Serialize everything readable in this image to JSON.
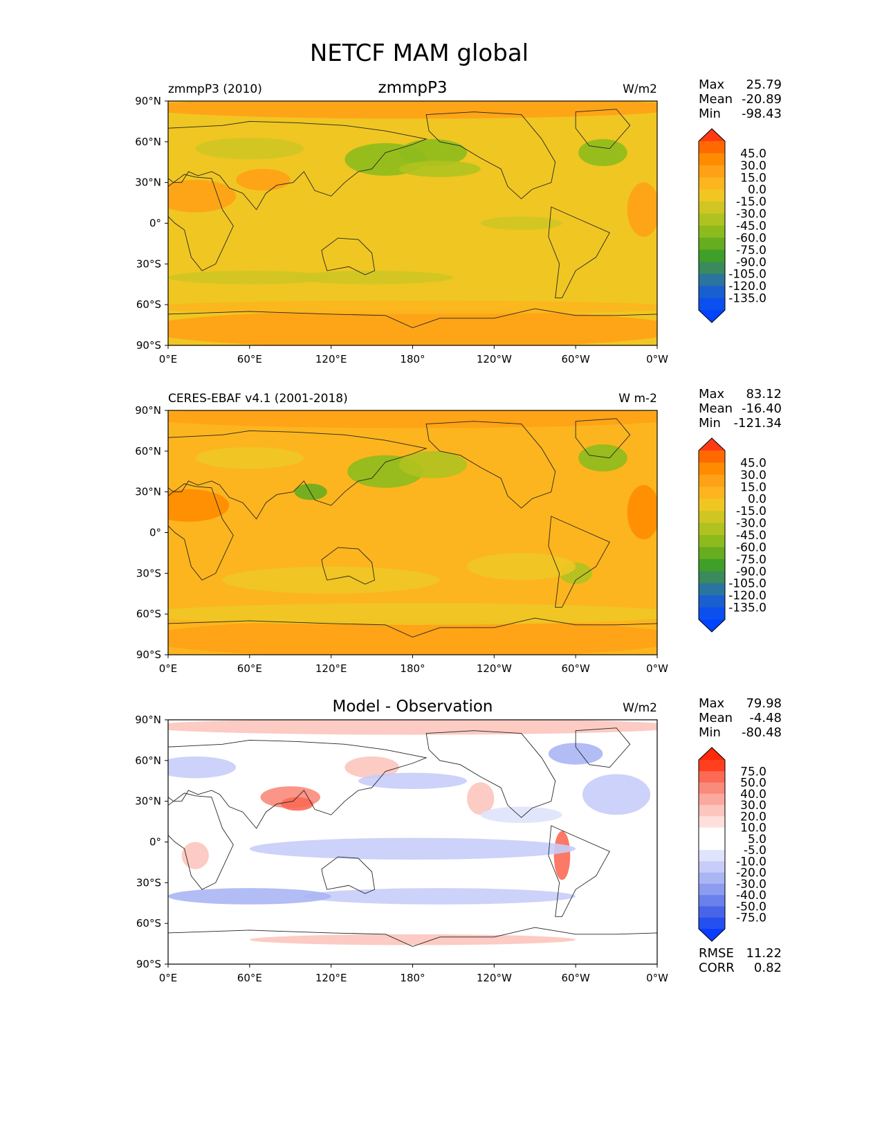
{
  "figure_title": "NETCF MAM global",
  "x_ticks": [
    "0°E",
    "60°E",
    "120°E",
    "180°",
    "120°W",
    "60°W",
    "0°W"
  ],
  "y_ticks": [
    "90°N",
    "60°N",
    "30°N",
    "0°",
    "30°S",
    "60°S",
    "90°S"
  ],
  "panels": [
    {
      "id": "model",
      "left_label": "zmmpP3 (2010)",
      "center_label": "zmmpP3",
      "units": "W/m2",
      "stats": [
        {
          "label": "Max",
          "value": "25.79"
        },
        {
          "label": "Mean",
          "value": "-20.89"
        },
        {
          "label": "Min",
          "value": "-98.43"
        }
      ],
      "colorbar": {
        "labels": [
          "45.0",
          "30.0",
          "15.0",
          "0.0",
          "-15.0",
          "-30.0",
          "-45.0",
          "-60.0",
          "-75.0",
          "-90.0",
          "-105.0",
          "-120.0",
          "-135.0"
        ],
        "colors": [
          "#ff3b14",
          "#ff6a00",
          "#ff8c00",
          "#ffa116",
          "#fcb51e",
          "#f0c623",
          "#cfc523",
          "#b0c21f",
          "#8dbb1d",
          "#66ad1f",
          "#3f9f28",
          "#3a8a5d",
          "#2a74a0",
          "#1a5fd0",
          "#0b50ee",
          "#0044ff"
        ]
      }
    },
    {
      "id": "obs",
      "left_label": "CERES-EBAF v4.1 (2001-2018)",
      "center_label": "",
      "units": "W m-2",
      "stats": [
        {
          "label": "Max",
          "value": "83.12"
        },
        {
          "label": "Mean",
          "value": "-16.40"
        },
        {
          "label": "Min",
          "value": "-121.34"
        }
      ],
      "colorbar": {
        "labels": [
          "45.0",
          "30.0",
          "15.0",
          "0.0",
          "-15.0",
          "-30.0",
          "-45.0",
          "-60.0",
          "-75.0",
          "-90.0",
          "-105.0",
          "-120.0",
          "-135.0"
        ],
        "colors": [
          "#ff3b14",
          "#ff6a00",
          "#ff8c00",
          "#ffa116",
          "#fcb51e",
          "#f0c623",
          "#cfc523",
          "#b0c21f",
          "#8dbb1d",
          "#66ad1f",
          "#3f9f28",
          "#3a8a5d",
          "#2a74a0",
          "#1a5fd0",
          "#0b50ee",
          "#0044ff"
        ]
      }
    },
    {
      "id": "diff",
      "left_label": "",
      "center_label": "Model - Observation",
      "units": "W/m2",
      "stats": [
        {
          "label": "Max",
          "value": "79.98"
        },
        {
          "label": "Mean",
          "value": "-4.48"
        },
        {
          "label": "Min",
          "value": "-80.48"
        }
      ],
      "extra_stats": [
        {
          "label": "RMSE",
          "value": "11.22"
        },
        {
          "label": "CORR",
          "value": "0.82"
        }
      ],
      "colorbar": {
        "labels": [
          "75.0",
          "50.0",
          "40.0",
          "30.0",
          "20.0",
          "10.0",
          "5.0",
          "-5.0",
          "-10.0",
          "-20.0",
          "-30.0",
          "-40.0",
          "-50.0",
          "-75.0"
        ],
        "colors": [
          "#ff2a0a",
          "#ff3f1e",
          "#fb6a55",
          "#fa8a7a",
          "#fba99e",
          "#fcc5bd",
          "#fde0dc",
          "#ffffff",
          "#ffffff",
          "#dfe3fb",
          "#c6cdf8",
          "#aab5f4",
          "#8c9cf0",
          "#6a80ec",
          "#4a64e8",
          "#2450f0",
          "#0a3cff"
        ]
      }
    }
  ]
}
